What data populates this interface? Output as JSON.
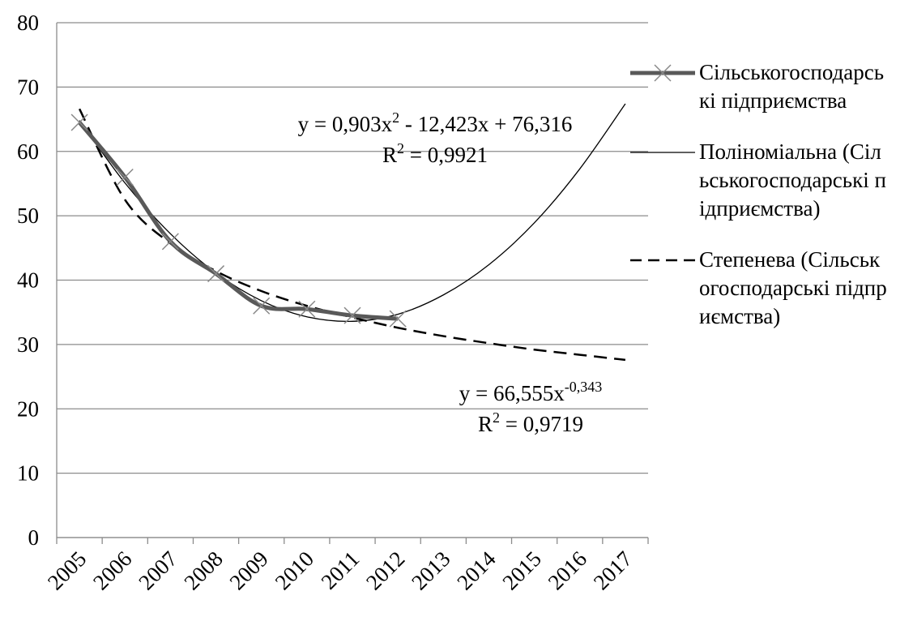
{
  "chart_data": {
    "type": "line",
    "categories": [
      "2005",
      "2006",
      "2007",
      "2008",
      "2009",
      "2010",
      "2011",
      "2012",
      "2013",
      "2014",
      "2015",
      "2016",
      "2017"
    ],
    "series": [
      {
        "name": "Сільськогосподарські підприємства",
        "color": "#595959",
        "line_width": 5,
        "marker": "x",
        "dashed": false,
        "values": [
          64.5,
          56,
          46,
          41,
          36,
          35.5,
          34.5,
          34,
          null,
          null,
          null,
          null,
          null
        ]
      },
      {
        "name": "Поліноміальна (Сільськогосподарські підприємства)",
        "color": "#000000",
        "line_width": 1.3,
        "marker": null,
        "dashed": false,
        "values": [
          64.8,
          55.1,
          47.2,
          41.1,
          36.8,
          34.3,
          33.6,
          34.7,
          37.7,
          42.4,
          48.9,
          57.3,
          67.4
        ]
      },
      {
        "name": "Степенева (Сільськогосподарські підприємства)",
        "color": "#000000",
        "line_width": 2.5,
        "marker": null,
        "dashed": true,
        "values": [
          66.6,
          52.5,
          45.7,
          41.4,
          38.3,
          36,
          34.2,
          32.6,
          31.3,
          30.2,
          29.2,
          28.4,
          27.6
        ]
      }
    ],
    "annotations": [
      {
        "text": "y = 0,903x",
        "sup": "2",
        "rest": " - 12,423x + 76,316"
      },
      {
        "text": "R",
        "sup": "2",
        "rest": " = 0,9921"
      },
      {
        "text": "y = 66,555x",
        "sup": "-0,343",
        "rest": ""
      },
      {
        "text": "R",
        "sup": "2",
        "rest": " = 0,9719"
      }
    ],
    "ylim": [
      0,
      80
    ],
    "yticks": [
      0,
      10,
      20,
      30,
      40,
      50,
      60,
      70,
      80
    ],
    "grid": true,
    "legend": "right"
  }
}
